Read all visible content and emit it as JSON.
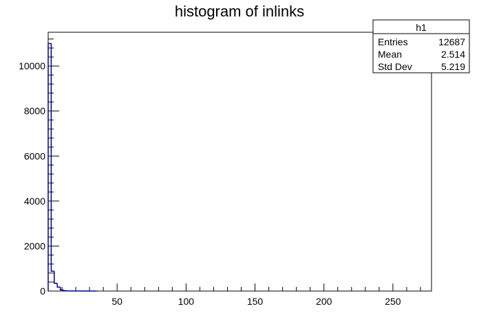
{
  "chart_data": {
    "type": "bar",
    "title": "histogram of inlinks",
    "xlabel": "",
    "ylabel": "",
    "xlim": [
      0,
      278
    ],
    "ylim": [
      0,
      11500
    ],
    "x_ticks": [
      50,
      100,
      150,
      200,
      250
    ],
    "y_ticks": [
      0,
      2000,
      4000,
      6000,
      8000,
      10000
    ],
    "grid": false,
    "bin_width": 2.2,
    "values": [
      11000,
      880,
      345,
      175,
      52,
      20,
      8,
      5,
      3,
      4,
      2,
      1,
      3,
      1,
      1,
      1
    ],
    "line_color": "#000099",
    "stats": {
      "name": "h1",
      "rows": [
        {
          "label": "Entries",
          "value": "12687"
        },
        {
          "label": "Mean",
          "value": "2.514"
        },
        {
          "label": "Std Dev",
          "value": "5.219"
        }
      ],
      "placement": "top-right"
    }
  }
}
